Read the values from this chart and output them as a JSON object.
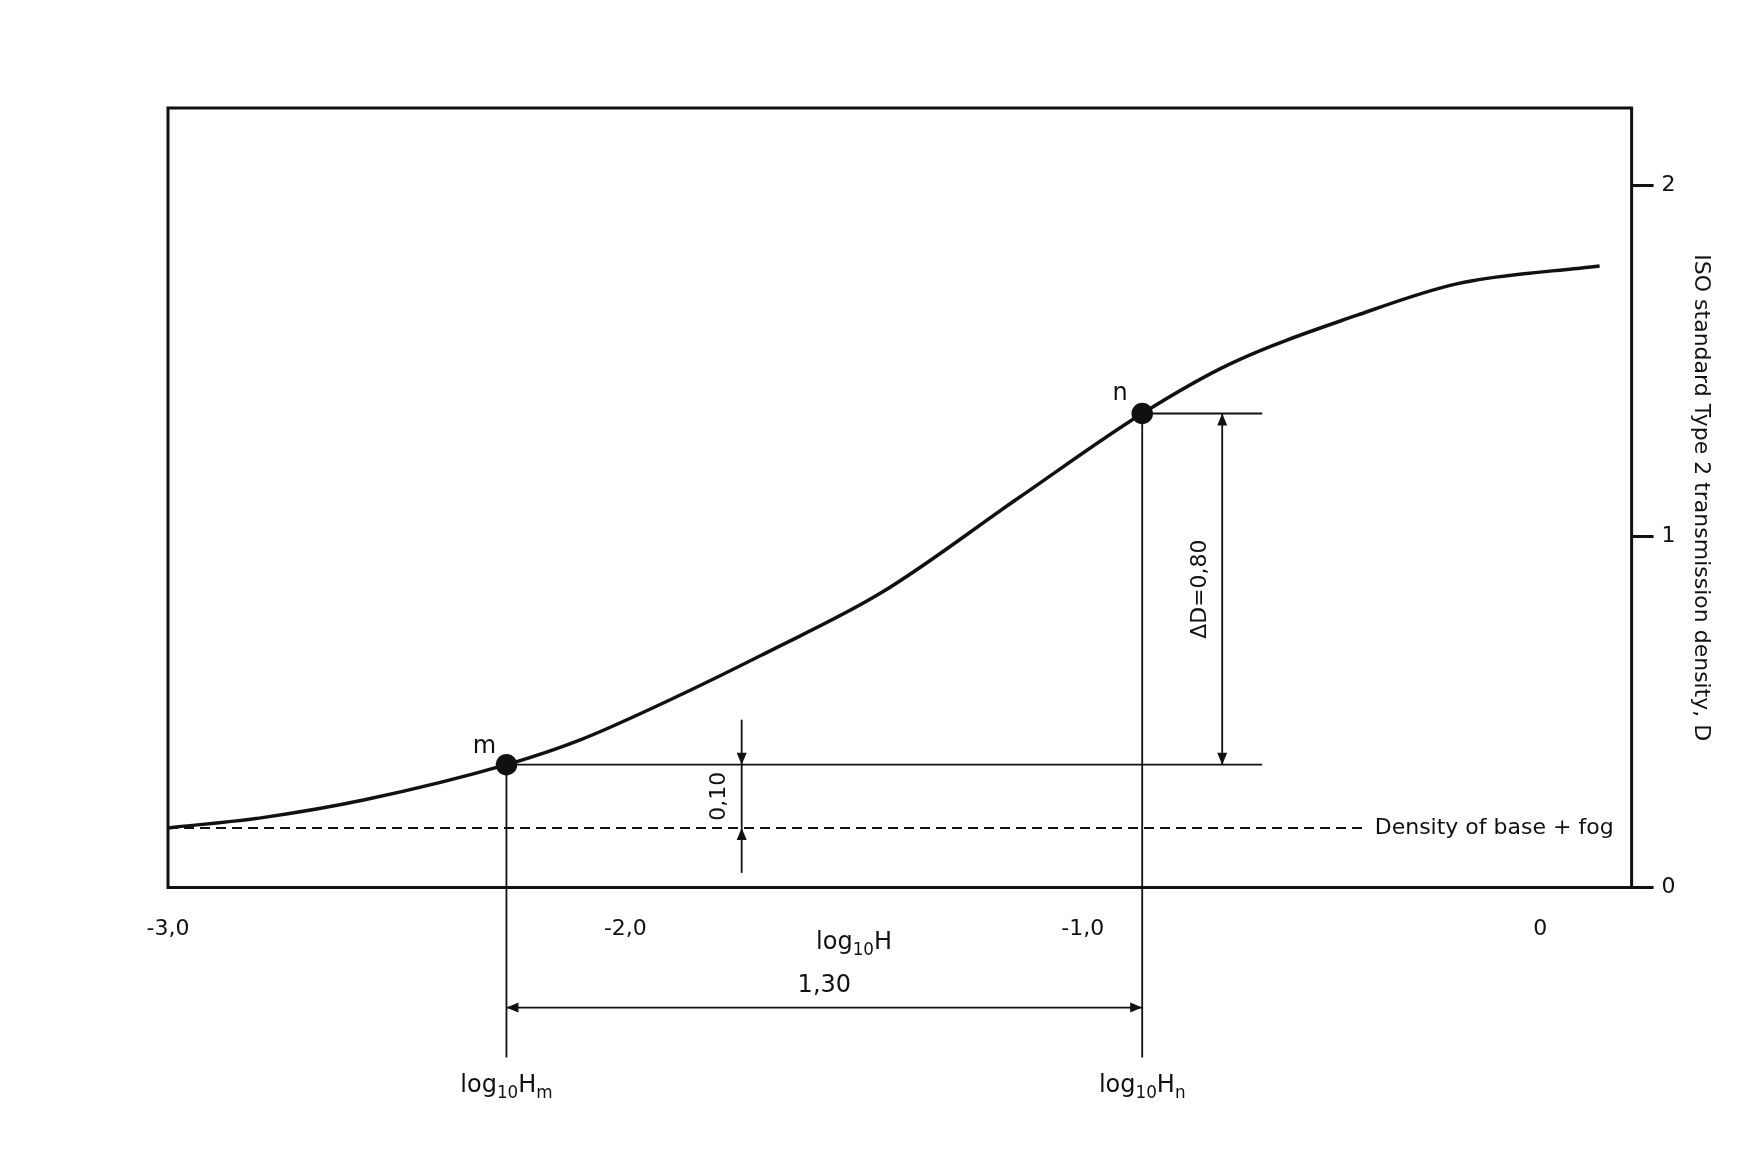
{
  "chart_data": {
    "type": "line",
    "xlabel": "log$_{10}$H",
    "ylabel": "ISO standard Type 2 transmission density, D",
    "xlim": [
      -3.0,
      0.2
    ],
    "xticks": [
      {
        "value": -3,
        "label": "-3,0"
      },
      {
        "value": -2,
        "label": "-2,0"
      },
      {
        "value": -1,
        "label": "-1,0"
      },
      0
    ],
    "ylim": [
      0,
      2.22
    ],
    "yticks": [
      0,
      1,
      2
    ],
    "grid": false,
    "legend": false,
    "series": [
      {
        "color": "#111111",
        "marker": "none",
        "line_style": "solid",
        "x": [
          -3.0,
          -2.79,
          -2.57,
          -2.26,
          -2.1,
          -1.91,
          -1.69,
          -1.44,
          -1.14,
          -0.87,
          -0.68,
          -0.4,
          -0.18,
          0.13
        ],
        "values": [
          0.17,
          0.2,
          0.25,
          0.35,
          0.42,
          0.53,
          0.67,
          0.84,
          1.11,
          1.35,
          1.49,
          1.63,
          1.72,
          1.77
        ]
      },
      {
        "type": "scatter",
        "color": "#111111",
        "marker": "circle",
        "x": [
          -2.26,
          -0.87
        ],
        "values": [
          0.35,
          1.35
        ]
      }
    ],
    "ref_lines": [
      {
        "axis": "y",
        "value": 0.17,
        "label": "Density of base + fog",
        "line_style": "dashed",
        "color": "#111111"
      },
      {
        "axis": "x",
        "value": -2.26,
        "label": "log$_{10}$H$_{m}$",
        "color": "#111111"
      },
      {
        "axis": "x",
        "value": -0.87,
        "label": "log$_{10}$H$_{n}$",
        "color": "#111111"
      },
      {
        "axis": "y",
        "value": 0.35,
        "color": "#111111"
      },
      {
        "axis": "y",
        "value": 1.35,
        "color": "#111111"
      }
    ],
    "annotations": [
      {
        "text": "m",
        "x": -2.26,
        "y": 0.35
      },
      {
        "text": "n",
        "x": -0.87,
        "y": 1.35
      },
      "1,30",
      "ΔD=0,80",
      "0,10"
    ]
  }
}
